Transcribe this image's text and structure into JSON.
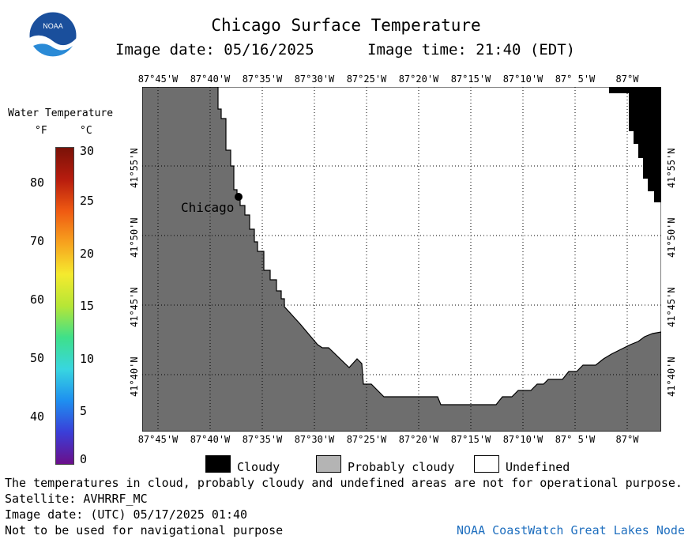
{
  "header": {
    "title": "Chicago Surface Temperature",
    "image_date": "Image date: 05/16/2025",
    "image_time": "Image time: 21:40 (EDT)",
    "logo_text": "NOAA"
  },
  "colorbar": {
    "title": "Water Temperature",
    "unit_f": "°F",
    "unit_c": "°C",
    "f_ticks": [
      "80",
      "70",
      "60",
      "50",
      "40"
    ],
    "c_ticks": [
      "30",
      "25",
      "20",
      "15",
      "10",
      "5",
      "0"
    ],
    "colors": [
      "#6b0f8a",
      "#3a3ed8",
      "#1e8ff0",
      "#38d6e0",
      "#3ee08a",
      "#b6e636",
      "#f5ea2e",
      "#f7a21e",
      "#ef5a12",
      "#b71c0e",
      "#7a1208"
    ]
  },
  "map": {
    "lon_labels": [
      "87°45'W",
      "87°40'W",
      "87°35'W",
      "87°30'W",
      "87°25'W",
      "87°20'W",
      "87°15'W",
      "87°10'W",
      "87° 5'W",
      "87°W"
    ],
    "lat_labels": [
      "41°55'N",
      "41°50'N",
      "41°45'N",
      "41°40'N"
    ],
    "city": "Chicago",
    "land_color": "#6e6e6e",
    "cloud_color": "#000000"
  },
  "legend": {
    "cloudy": "Cloudy",
    "probably_cloudy": "Probably cloudy",
    "undefined": "Undefined",
    "cloudy_color": "#000000",
    "probably_cloudy_color": "#b4b4b4",
    "undefined_color": "#ffffff"
  },
  "footer": {
    "disclaimer": "The temperatures in cloud, probably cloudy and undefined areas are not for operational purpose.",
    "satellite": "Satellite: AVHRRF_MC",
    "utc_date": "Image date: (UTC) 05/17/2025  01:40",
    "nav_warning": "Not to be used for navigational purpose",
    "credit": "NOAA CoastWatch Great Lakes Node"
  }
}
